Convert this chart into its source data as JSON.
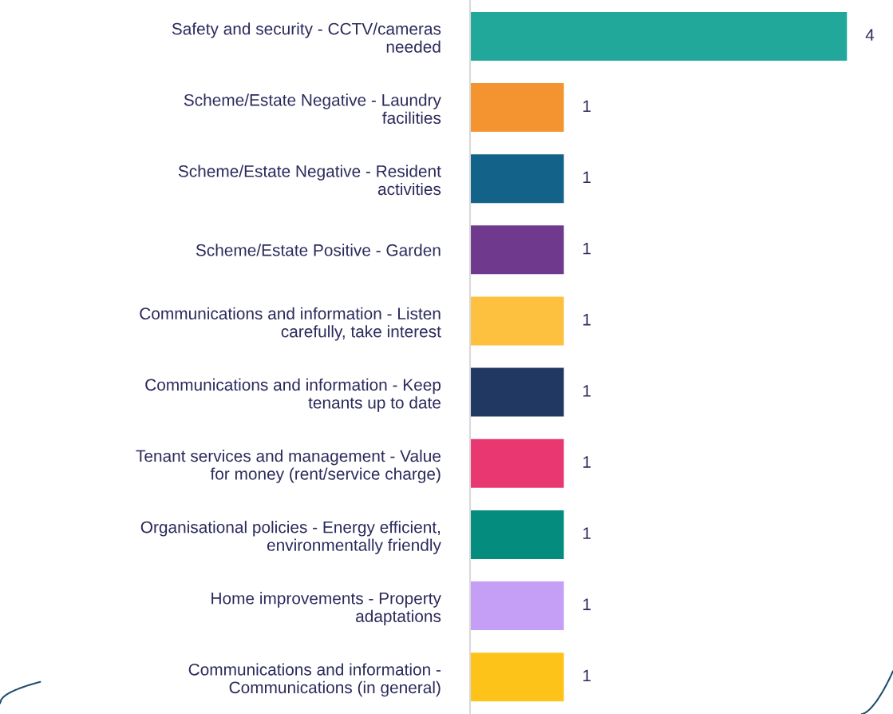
{
  "chart_data": {
    "type": "bar",
    "orientation": "horizontal",
    "data_labels": true,
    "grid": false,
    "legend": false,
    "tick_labels": "y",
    "categories": [
      "Safety and security - CCTV/cameras\nneeded",
      "Scheme/Estate Negative - Laundry\nfacilities",
      "Scheme/Estate Negative - Resident\nactivities",
      "Scheme/Estate Positive - Garden",
      "Communications and information - Listen\ncarefully, take interest",
      "Communications and information - Keep\ntenants up to date",
      "Tenant services and management - Value\nfor money (rent/service charge)",
      "Organisational policies - Energy efficient,\nenvironmentally friendly",
      "Home improvements - Property\nadaptations",
      "Communications and information -\nCommunications (in general)"
    ],
    "values": [
      4,
      1,
      1,
      1,
      1,
      1,
      1,
      1,
      1,
      1
    ],
    "colors": [
      "#22a89a",
      "#f39430",
      "#136289",
      "#6f3a8e",
      "#fdc13f",
      "#213862",
      "#e93871",
      "#048d7f",
      "#c59ef5",
      "#fec318"
    ]
  }
}
